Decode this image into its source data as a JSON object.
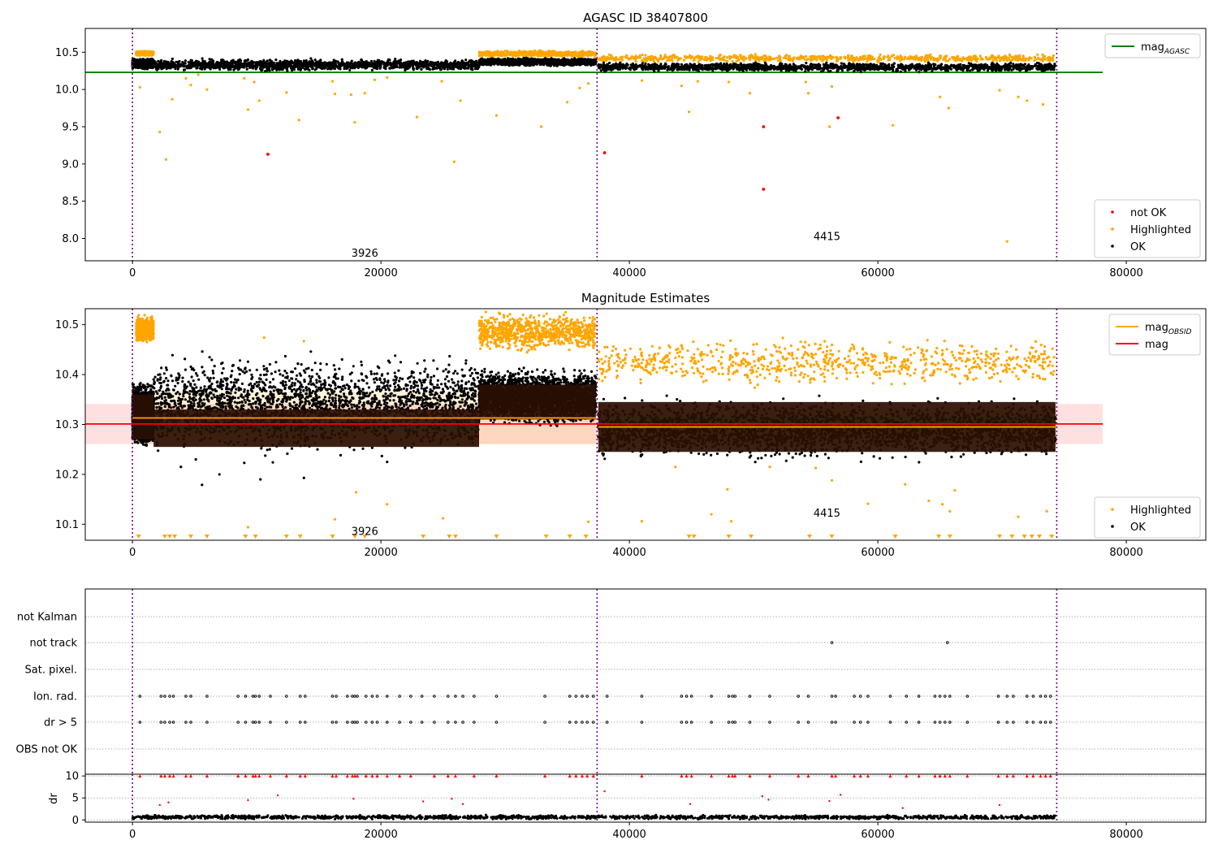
{
  "figure": {
    "title_top": "AGASC ID 38407800",
    "title_mid": "Magnitude Estimates"
  },
  "chart_data": [
    {
      "type": "scatter",
      "title": "AGASC ID 38407800",
      "xlabel": "",
      "ylabel": "",
      "xlim": [
        -3800,
        86400
      ],
      "ylim": [
        7.7,
        10.82
      ],
      "xticks": [
        0,
        20000,
        40000,
        60000,
        80000
      ],
      "yticks": [
        8.0,
        8.5,
        9.0,
        9.5,
        10.0,
        10.5
      ],
      "observation_boundaries": [
        0,
        37400,
        74400
      ],
      "observation_labels": [
        {
          "text": "3926",
          "x": 18700,
          "y": 7.8
        },
        {
          "text": "4415",
          "x": 55900,
          "y": 8.02
        }
      ],
      "reference_line": {
        "name": "mag_AGASC",
        "value": 10.23,
        "x_range": [
          -3800,
          78100
        ],
        "color": "#008000"
      },
      "series": [
        {
          "name": "not OK",
          "color": "#ff0000",
          "points": [
            [
              10900,
              9.13
            ],
            [
              38000,
              9.15
            ],
            [
              50800,
              9.5
            ],
            [
              56800,
              9.62
            ],
            [
              50800,
              8.66
            ]
          ]
        },
        {
          "name": "Highlighted",
          "color": "#ffa500",
          "bands": [
            {
              "x_range": [
                300,
                1700
              ],
              "y_range": [
                10.45,
                10.52
              ]
            },
            {
              "x_range": [
                27900,
                37300
              ],
              "y_range": [
                10.43,
                10.53
              ]
            },
            {
              "x_range": [
                37500,
                74200
              ],
              "y_range": [
                10.36,
                10.48
              ]
            }
          ],
          "points": [
            [
              600,
              10.03
            ],
            [
              2200,
              9.43
            ],
            [
              2700,
              9.06
            ],
            [
              3200,
              9.87
            ],
            [
              4300,
              10.15
            ],
            [
              4700,
              10.06
            ],
            [
              5300,
              10.2
            ],
            [
              6000,
              10.0
            ],
            [
              9000,
              10.15
            ],
            [
              9300,
              9.73
            ],
            [
              9800,
              10.1
            ],
            [
              10200,
              9.85
            ],
            [
              12400,
              9.96
            ],
            [
              13400,
              9.59
            ],
            [
              16100,
              10.11
            ],
            [
              16300,
              9.94
            ],
            [
              17600,
              9.93
            ],
            [
              17900,
              9.56
            ],
            [
              18700,
              9.95
            ],
            [
              19500,
              10.13
            ],
            [
              20500,
              10.16
            ],
            [
              22900,
              9.63
            ],
            [
              24900,
              10.11
            ],
            [
              25900,
              9.03
            ],
            [
              26400,
              9.85
            ],
            [
              29300,
              9.65
            ],
            [
              32900,
              9.5
            ],
            [
              35000,
              9.83
            ],
            [
              36000,
              10.02
            ],
            [
              36700,
              10.08
            ],
            [
              37200,
              10.43
            ],
            [
              41000,
              10.12
            ],
            [
              44200,
              10.05
            ],
            [
              44800,
              9.7
            ],
            [
              45500,
              10.11
            ],
            [
              48000,
              10.1
            ],
            [
              49700,
              9.95
            ],
            [
              54200,
              10.1
            ],
            [
              54400,
              9.95
            ],
            [
              56100,
              9.5
            ],
            [
              56300,
              10.04
            ],
            [
              61200,
              9.52
            ],
            [
              65000,
              9.9
            ],
            [
              65700,
              9.75
            ],
            [
              69800,
              9.99
            ],
            [
              70400,
              7.96
            ],
            [
              71300,
              9.9
            ],
            [
              72000,
              9.85
            ],
            [
              73300,
              9.8
            ]
          ]
        },
        {
          "name": "OK",
          "color": "#000000",
          "bands": [
            {
              "x_range": [
                0,
                1700
              ],
              "y_range": [
                10.27,
                10.42
              ]
            },
            {
              "x_range": [
                1700,
                27900
              ],
              "y_range": [
                10.24,
                10.42
              ]
            },
            {
              "x_range": [
                27900,
                37300
              ],
              "y_range": [
                10.31,
                10.43
              ]
            },
            {
              "x_range": [
                37500,
                74300
              ],
              "y_range": [
                10.23,
                10.37
              ]
            }
          ]
        }
      ],
      "legend": {
        "placement": "lower right",
        "entries": [
          "not OK",
          "Highlighted",
          "OK"
        ]
      },
      "legend_upper": {
        "placement": "upper right",
        "entries": [
          "mag_AGASC"
        ]
      }
    },
    {
      "type": "scatter",
      "title": "Magnitude Estimates",
      "xlabel": "",
      "ylabel": "",
      "xlim": [
        -3800,
        86400
      ],
      "ylim": [
        10.068,
        10.532
      ],
      "xticks": [
        0,
        20000,
        40000,
        60000,
        80000
      ],
      "yticks": [
        10.1,
        10.2,
        10.3,
        10.4,
        10.5
      ],
      "observation_boundaries": [
        0,
        37400,
        74400
      ],
      "observation_labels": [
        {
          "text": "3926",
          "x": 18700,
          "y": 10.085
        },
        {
          "text": "4415",
          "x": 55900,
          "y": 10.122
        }
      ],
      "reference_lines": [
        {
          "name": "mag",
          "value": 10.301,
          "x_range": [
            -3800,
            78100
          ],
          "color": "#ff0000",
          "band": [
            10.261,
            10.341
          ]
        },
        {
          "name": "mag_OBSID",
          "color": "#ffa500",
          "segments": [
            {
              "x_range": [
                0,
                37300
              ],
              "value": 10.313,
              "band": [
                10.26,
                10.366
              ]
            },
            {
              "x_range": [
                37500,
                74400
              ],
              "value": 10.295,
              "band": [
                10.255,
                10.338
              ]
            }
          ]
        }
      ],
      "series": [
        {
          "name": "Highlighted",
          "color": "#ffa500",
          "bands": [
            {
              "x_range": [
                300,
                1700
              ],
              "y_range": [
                10.46,
                10.52
              ]
            },
            {
              "x_range": [
                27900,
                37300
              ],
              "y_range": [
                10.44,
                10.53
              ]
            },
            {
              "x_range": [
                37500,
                74200
              ],
              "y_range": [
                10.37,
                10.48
              ]
            }
          ],
          "points": [
            [
              9300,
              10.094
            ],
            [
              10600,
              10.474
            ],
            [
              13800,
              10.467
            ],
            [
              16300,
              10.11
            ],
            [
              18000,
              10.164
            ],
            [
              20500,
              10.14
            ],
            [
              25000,
              10.112
            ],
            [
              36700,
              10.105
            ],
            [
              41000,
              10.106
            ],
            [
              43700,
              10.215
            ],
            [
              46600,
              10.12
            ],
            [
              47900,
              10.17
            ],
            [
              48200,
              10.106
            ],
            [
              51300,
              10.215
            ],
            [
              55000,
              10.213
            ],
            [
              56300,
              10.188
            ],
            [
              59200,
              10.141
            ],
            [
              62200,
              10.18
            ],
            [
              64100,
              10.147
            ],
            [
              65200,
              10.14
            ],
            [
              65800,
              10.126
            ],
            [
              66200,
              10.168
            ],
            [
              71300,
              10.115
            ],
            [
              73600,
              10.126
            ]
          ],
          "floor_markers_x": [
            500,
            2600,
            3000,
            3400,
            4700,
            6000,
            9100,
            9900,
            12400,
            13500,
            16100,
            17900,
            18700,
            23400,
            25500,
            26000,
            29300,
            33300,
            35200,
            36500,
            44800,
            45200,
            48000,
            49800,
            54500,
            56300,
            61400,
            64900,
            65800,
            69800,
            70800,
            71800,
            72400,
            73000,
            74000
          ]
        },
        {
          "name": "OK",
          "color": "#000000",
          "bands": [
            {
              "x_range": [
                0,
                1700
              ],
              "y_range": [
                10.25,
                10.39
              ]
            },
            {
              "x_range": [
                1700,
                27900
              ],
              "y_range": [
                10.23,
                10.45
              ]
            },
            {
              "x_range": [
                27900,
                37300
              ],
              "y_range": [
                10.29,
                10.42
              ]
            },
            {
              "x_range": [
                37500,
                74300
              ],
              "y_range": [
                10.22,
                10.36
              ]
            }
          ],
          "points": [
            [
              3900,
              10.215
            ],
            [
              5100,
              10.23
            ],
            [
              5600,
              10.179
            ],
            [
              7000,
              10.2
            ],
            [
              9000,
              10.223
            ],
            [
              10300,
              10.19
            ],
            [
              11300,
              10.224
            ],
            [
              13800,
              10.193
            ],
            [
              20500,
              10.225
            ]
          ]
        }
      ],
      "legend": {
        "placement": "lower right",
        "entries": [
          "Highlighted",
          "OK"
        ]
      },
      "legend_upper": {
        "placement": "upper right",
        "entries": [
          "mag_OBSID",
          "mag"
        ]
      }
    },
    {
      "type": "scatter",
      "title": "",
      "xlabel": "",
      "ylabel": "",
      "xlim": [
        -3800,
        86400
      ],
      "categories": [
        "not Kalman",
        "not track",
        "Sat. pixel.",
        "Ion. rad.",
        "dr > 5",
        "OBS not OK"
      ],
      "observation_boundaries": [
        0,
        37400,
        74400
      ],
      "flag_points": {
        "not track": [
          56300,
          65600
        ],
        "Ion. rad.": [
          600,
          2300,
          2600,
          3000,
          3300,
          4300,
          4700,
          6000,
          8500,
          9100,
          9700,
          9900,
          10200,
          11100,
          12400,
          13500,
          13900,
          16100,
          16400,
          17300,
          17700,
          17900,
          18100,
          18800,
          19300,
          19700,
          20500,
          21500,
          22400,
          23300,
          24300,
          25400,
          26000,
          26600,
          27500,
          29300,
          33200,
          35200,
          35700,
          36200,
          36600,
          37100,
          38200,
          41000,
          44200,
          44600,
          45000,
          46600,
          48000,
          48300,
          48500,
          49700,
          51300,
          53600,
          54400,
          56300,
          56600,
          58100,
          58600,
          59200,
          61000,
          62300,
          63300,
          64600,
          65000,
          65400,
          65800,
          67200,
          69700,
          70400,
          70900,
          72000,
          72500,
          73100,
          73500,
          73900
        ],
        "dr > 5": [
          600,
          2300,
          2600,
          3000,
          3300,
          4300,
          4700,
          6000,
          8500,
          9100,
          9700,
          9900,
          10200,
          11100,
          12400,
          13500,
          13900,
          16100,
          16400,
          17300,
          17700,
          17900,
          18100,
          18800,
          19300,
          19700,
          20500,
          21500,
          22400,
          23300,
          24300,
          25400,
          26000,
          26600,
          27500,
          29300,
          33200,
          35200,
          35700,
          36200,
          36600,
          37100,
          38200,
          41000,
          44200,
          44600,
          45000,
          46600,
          48000,
          48300,
          48500,
          49700,
          51300,
          53600,
          54400,
          56300,
          56600,
          58100,
          58600,
          59200,
          61000,
          62300,
          63300,
          64600,
          65000,
          65400,
          65800,
          67200,
          69700,
          70400,
          70900,
          72000,
          72500,
          73100,
          73500,
          73900
        ]
      }
    },
    {
      "type": "scatter",
      "title": "",
      "xlabel": "",
      "ylabel": "dr",
      "xlim": [
        -3800,
        86400
      ],
      "ylim": [
        -0.5,
        10.4
      ],
      "xticks": [
        0,
        20000,
        40000,
        60000,
        80000
      ],
      "yticks": [
        0,
        5,
        10
      ],
      "observation_boundaries": [
        0,
        37400,
        74400
      ],
      "clip_value": 10,
      "series": [
        {
          "name": "OK",
          "color": "#000000",
          "bands": [
            {
              "x_range": [
                0,
                74300
              ],
              "y_range": [
                0.05,
                1.2
              ]
            }
          ]
        },
        {
          "name": "not OK",
          "color": "#ff0000",
          "points": [
            [
              2200,
              3.4
            ],
            [
              2900,
              4.0
            ],
            [
              9300,
              4.5
            ],
            [
              11700,
              5.6
            ],
            [
              17800,
              4.8
            ],
            [
              23400,
              4.2
            ],
            [
              25700,
              4.8
            ],
            [
              26600,
              3.6
            ],
            [
              38000,
              6.5
            ],
            [
              44900,
              3.6
            ],
            [
              50700,
              5.4
            ],
            [
              51200,
              4.6
            ],
            [
              56100,
              4.3
            ],
            [
              57000,
              5.7
            ],
            [
              62000,
              2.7
            ],
            [
              69800,
              3.4
            ]
          ],
          "clipped_x": [
            600,
            2300,
            2600,
            3000,
            3300,
            4300,
            4700,
            6000,
            8500,
            9100,
            9700,
            9900,
            10200,
            11100,
            12400,
            13500,
            13900,
            16100,
            16400,
            17300,
            17700,
            17900,
            18100,
            18800,
            19300,
            19700,
            20500,
            21500,
            22400,
            24300,
            25400,
            26000,
            27500,
            29300,
            33200,
            35200,
            35700,
            36200,
            36600,
            37100,
            41000,
            44200,
            44600,
            45000,
            46600,
            48000,
            48300,
            48500,
            49700,
            51300,
            53600,
            54400,
            56300,
            56600,
            58100,
            58600,
            59200,
            61000,
            62300,
            63300,
            64600,
            65000,
            65400,
            65800,
            67200,
            69700,
            70400,
            70900,
            72000,
            72500,
            73100,
            73500,
            73900
          ]
        }
      ]
    }
  ]
}
